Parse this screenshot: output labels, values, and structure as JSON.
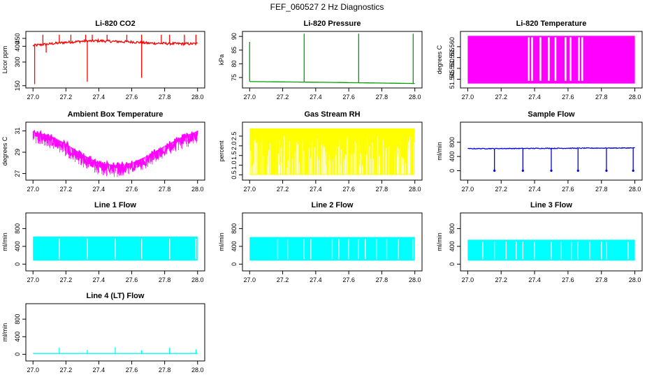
{
  "page": {
    "title": "FEF_060527  2 Hz Diagnostics"
  },
  "chart_data": [
    {
      "type": "line",
      "title": "Li-820 CO2",
      "ylabel": "Licor ppm",
      "xlim": [
        27.0,
        28.0
      ],
      "ylim": [
        150,
        480
      ],
      "xticks": [
        27.0,
        27.2,
        27.4,
        27.6,
        27.8,
        28.0
      ],
      "xtick_labels": [
        "27.0",
        "27.2",
        "27.4",
        "27.6",
        "27.8",
        "28.0"
      ],
      "yticks": [
        150,
        300,
        400,
        450
      ],
      "ytick_labels": [
        "150",
        "300",
        "400",
        "450"
      ],
      "color": "#ff0000",
      "series": [
        {
          "x": [
            27.0,
            27.1,
            27.2,
            27.3,
            27.4,
            27.5,
            27.6,
            27.7,
            27.8,
            27.9,
            28.0
          ],
          "values": [
            405,
            415,
            425,
            432,
            435,
            430,
            428,
            420,
            418,
            416,
            416
          ]
        }
      ],
      "spikes_up": [
        27.06,
        27.16,
        27.23,
        27.32,
        27.36,
        27.45,
        27.57,
        27.66,
        27.78,
        27.83,
        27.92,
        27.99
      ],
      "spikes_down": [
        {
          "x": 27.01,
          "y": 160
        },
        {
          "x": 27.08,
          "y": 360
        },
        {
          "x": 27.33,
          "y": 175
        },
        {
          "x": 27.66,
          "y": 200
        }
      ]
    },
    {
      "type": "line",
      "title": "Li-820 Pressure",
      "ylabel": "kPa",
      "xlim": [
        27.0,
        28.0
      ],
      "ylim": [
        72,
        91
      ],
      "xticks": [
        27.0,
        27.2,
        27.4,
        27.6,
        27.8,
        28.0
      ],
      "xtick_labels": [
        "27.0",
        "27.2",
        "27.4",
        "27.6",
        "27.8",
        "28.0"
      ],
      "yticks": [
        75,
        80,
        85,
        90
      ],
      "ytick_labels": [
        "75",
        "80",
        "85",
        "90"
      ],
      "color": "#00a000",
      "series": [
        {
          "x": [
            27.0,
            27.02,
            27.5,
            28.0
          ],
          "values": [
            73.5,
            73.5,
            73.2,
            72.8
          ]
        }
      ],
      "spikes_up": [
        {
          "x": 27.0,
          "y": 88
        },
        {
          "x": 27.33,
          "y": 91
        },
        {
          "x": 27.66,
          "y": 91
        },
        {
          "x": 27.99,
          "y": 91
        }
      ]
    },
    {
      "type": "line",
      "title": "Li-820 Temperature",
      "ylabel": "degrees C",
      "xlim": [
        27.0,
        28.0
      ],
      "ylim": [
        51.542,
        51.566
      ],
      "xticks": [
        27.0,
        27.2,
        27.4,
        27.6,
        27.8,
        28.0
      ],
      "xtick_labels": [
        "27.0",
        "27.2",
        "27.4",
        "27.6",
        "27.8",
        "28.0"
      ],
      "yticks": [
        51.545,
        51.55,
        51.555,
        51.56
      ],
      "ytick_labels": [
        "51.545",
        "51.550",
        "51.555",
        "51.560"
      ],
      "color": "#ff00ff",
      "value_band": [
        51.543,
        51.565
      ]
    },
    {
      "type": "line",
      "title": "Ambient Box Temperature",
      "ylabel": "degrees C",
      "xlim": [
        27.0,
        28.0
      ],
      "ylim": [
        26.6,
        31.6
      ],
      "xticks": [
        27.0,
        27.2,
        27.4,
        27.6,
        27.8,
        28.0
      ],
      "xtick_labels": [
        "27.0",
        "27.2",
        "27.4",
        "27.6",
        "27.8",
        "28.0"
      ],
      "yticks": [
        27,
        29,
        31
      ],
      "ytick_labels": [
        "27",
        "29",
        "31"
      ],
      "color": "#ff00ff",
      "series": [
        {
          "x": [
            27.0,
            27.1,
            27.2,
            27.3,
            27.4,
            27.5,
            27.6,
            27.7,
            27.8,
            27.9,
            28.0
          ],
          "values": [
            30.9,
            30.6,
            29.8,
            28.8,
            28.0,
            27.8,
            28.0,
            28.7,
            29.6,
            30.4,
            31.0
          ]
        }
      ]
    },
    {
      "type": "line",
      "title": "Gas Stream RH",
      "ylabel": "percent",
      "xlim": [
        27.0,
        28.0
      ],
      "ylim": [
        0.35,
        3.1
      ],
      "xticks": [
        27.0,
        27.2,
        27.4,
        27.6,
        27.8,
        28.0
      ],
      "xtick_labels": [
        "27.0",
        "27.2",
        "27.4",
        "27.6",
        "27.8",
        "28.0"
      ],
      "yticks": [
        0.5,
        1.0,
        1.5,
        2.0,
        2.5
      ],
      "ytick_labels": [
        "0.5",
        "1.0",
        "1.5",
        "2.0",
        "2.5"
      ],
      "color": "#ffff00",
      "value_band": [
        0.5,
        2.9
      ]
    },
    {
      "type": "line",
      "title": "Sample Flow",
      "ylabel": "ml/min",
      "xlim": [
        27.0,
        28.0
      ],
      "ylim": [
        -200,
        1300
      ],
      "xticks": [
        27.0,
        27.2,
        27.4,
        27.6,
        27.8,
        28.0
      ],
      "xtick_labels": [
        "27.0",
        "27.2",
        "27.4",
        "27.6",
        "27.8",
        "28.0"
      ],
      "yticks": [
        0,
        400,
        800
      ],
      "ytick_labels": [
        "0",
        "400",
        "800"
      ],
      "color": "#0000e0",
      "series": [
        {
          "x": [
            27.0,
            27.5,
            28.0
          ],
          "values": [
            620,
            630,
            640
          ]
        }
      ],
      "dips": [
        27.16,
        27.33,
        27.5,
        27.66,
        27.83,
        27.99
      ]
    },
    {
      "type": "line",
      "title": "Line 1 Flow",
      "ylabel": "ml/min",
      "xlim": [
        27.0,
        28.0
      ],
      "ylim": [
        -100,
        1100
      ],
      "xticks": [
        27.0,
        27.2,
        27.4,
        27.6,
        27.8,
        28.0
      ],
      "xtick_labels": [
        "27.0",
        "27.2",
        "27.4",
        "27.6",
        "27.8",
        "28.0"
      ],
      "yticks": [
        0,
        400,
        800
      ],
      "ytick_labels": [
        "0",
        "400",
        "800"
      ],
      "color": "#00ffff",
      "value_band": [
        80,
        620
      ],
      "gaps": [
        27.16,
        27.33,
        27.5,
        27.66,
        27.83,
        27.99
      ]
    },
    {
      "type": "line",
      "title": "Line 2 Flow",
      "ylabel": "ml/min",
      "xlim": [
        27.0,
        28.0
      ],
      "ylim": [
        -100,
        1100
      ],
      "xticks": [
        27.0,
        27.2,
        27.4,
        27.6,
        27.8,
        28.0
      ],
      "xtick_labels": [
        "27.0",
        "27.2",
        "27.4",
        "27.6",
        "27.8",
        "28.0"
      ],
      "yticks": [
        0,
        400,
        800
      ],
      "ytick_labels": [
        "0",
        "400",
        "800"
      ],
      "color": "#00ffff",
      "value_band": [
        80,
        610
      ],
      "gaps": [
        27.17,
        27.23,
        27.33,
        27.37,
        27.5,
        27.54,
        27.6,
        27.66,
        27.7,
        27.77,
        27.83,
        27.9,
        27.99
      ]
    },
    {
      "type": "line",
      "title": "Line 3 Flow",
      "ylabel": "ml/min",
      "xlim": [
        27.0,
        28.0
      ],
      "ylim": [
        -100,
        1100
      ],
      "xticks": [
        27.0,
        27.2,
        27.4,
        27.6,
        27.8,
        28.0
      ],
      "xtick_labels": [
        "27.0",
        "27.2",
        "27.4",
        "27.6",
        "27.8",
        "28.0"
      ],
      "yticks": [
        0,
        400,
        800
      ],
      "ytick_labels": [
        "0",
        "400",
        "800"
      ],
      "color": "#00ffff",
      "value_band": [
        80,
        550
      ],
      "gaps": [
        27.09,
        27.16,
        27.23,
        27.29,
        27.33,
        27.4,
        27.5,
        27.56,
        27.62,
        27.66,
        27.73,
        27.8,
        27.83,
        27.96
      ]
    },
    {
      "type": "line",
      "title": "Line 4 (LT) Flow",
      "ylabel": "ml/min",
      "xlim": [
        27.0,
        28.0
      ],
      "ylim": [
        -100,
        1100
      ],
      "xticks": [
        27.0,
        27.2,
        27.4,
        27.6,
        27.8,
        28.0
      ],
      "xtick_labels": [
        "27.0",
        "27.2",
        "27.4",
        "27.6",
        "27.8",
        "28.0"
      ],
      "yticks": [
        0,
        400,
        800
      ],
      "ytick_labels": [
        "0",
        "400",
        "800"
      ],
      "color": "#00ffff",
      "series": [
        {
          "x": [
            27.0,
            28.0
          ],
          "values": [
            20,
            20
          ]
        }
      ],
      "spikes_up": [
        {
          "x": 27.16,
          "y": 150
        },
        {
          "x": 27.33,
          "y": 100
        },
        {
          "x": 27.5,
          "y": 160
        },
        {
          "x": 27.66,
          "y": 90
        },
        {
          "x": 27.83,
          "y": 150
        },
        {
          "x": 27.99,
          "y": 110
        }
      ]
    }
  ]
}
